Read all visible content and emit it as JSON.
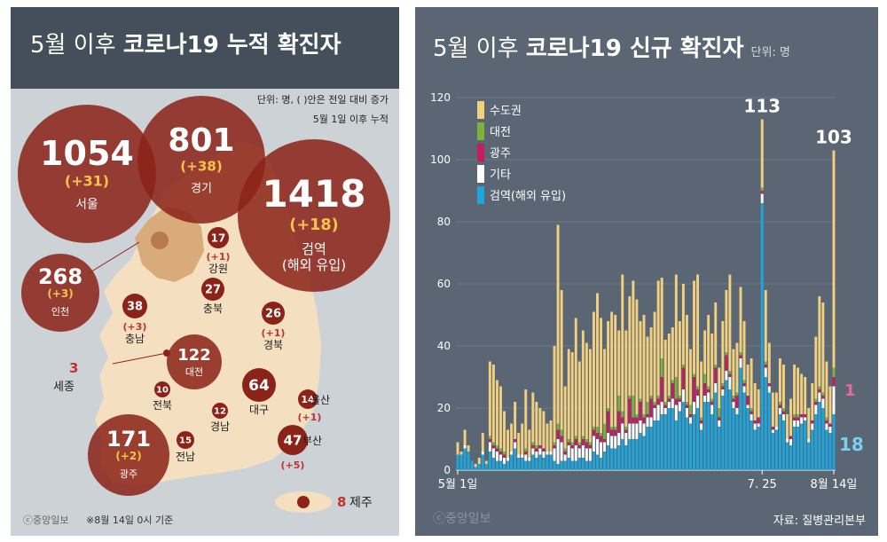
{
  "left": {
    "title_prefix": "5월 이후 ",
    "title_bold": "코로나19 누적 확진자",
    "note_line1": "단위: 명, ( )안은 전일 대비 증가",
    "note_line2": "5월 1일 이후 누적",
    "footer_brand": "ⓒ중앙일보",
    "footer_note": "※8월 14일 0시 기준",
    "bubbles": [
      {
        "name": "서울",
        "value": "1054",
        "inc": "(+31)"
      },
      {
        "name": "경기",
        "value": "801",
        "inc": "(+38)"
      },
      {
        "name": "검역",
        "name2": "(해외 유입)",
        "value": "1418",
        "inc": "(+18)"
      },
      {
        "name": "인천",
        "value": "268",
        "inc": "(+3)"
      },
      {
        "name": "광주",
        "value": "171",
        "inc": "(+2)"
      },
      {
        "name": "대전",
        "value": "122"
      }
    ],
    "regions": [
      {
        "name": "강원",
        "value": "17",
        "inc": "(+1)"
      },
      {
        "name": "충북",
        "value": "27"
      },
      {
        "name": "경북",
        "value": "26",
        "inc": "(+1)"
      },
      {
        "name": "충남",
        "value": "38",
        "inc": "(+3)"
      },
      {
        "name": "대구",
        "value": "64"
      },
      {
        "name": "전북",
        "value": "10"
      },
      {
        "name": "경남",
        "value": "12"
      },
      {
        "name": "울산",
        "value": "14",
        "inc": "(+1)"
      },
      {
        "name": "부산",
        "value": "47",
        "inc": "(+5)"
      },
      {
        "name": "전남",
        "value": "15"
      },
      {
        "name": "세종",
        "value": "3"
      },
      {
        "name": "제주",
        "value": "8"
      }
    ]
  },
  "right": {
    "title_prefix": "5월 이후 ",
    "title_bold": "코로나19 신규 확진자",
    "unit": "단위: 명",
    "source": "자료: 질병관리본부",
    "brand": "ⓒ중앙일보"
  },
  "colors": {
    "capital": "#f2d07e",
    "daejeon": "#7fb03a",
    "gwangju": "#c41c5e",
    "other": "#ffffff",
    "quarantine": "#1ea6dc",
    "bubble": "#8b2318",
    "land": "#f4dfc1",
    "metro": "#d9aa7a"
  },
  "chart_data": {
    "type": "bar",
    "title": "5월 이후 코로나19 신규 확진자",
    "unit": "단위: 명",
    "ylim": [
      0,
      120
    ],
    "yticks": [
      0,
      20,
      40,
      60,
      80,
      100,
      120
    ],
    "x_tick_labels": [
      {
        "index": 0,
        "label": "5월 1일"
      },
      {
        "index": 85,
        "label": "7. 25"
      },
      {
        "index": 105,
        "label": "8월 14일"
      }
    ],
    "series": [
      {
        "name": "수도권",
        "color": "#f2d07e"
      },
      {
        "name": "대전",
        "color": "#7fb03a"
      },
      {
        "name": "광주",
        "color": "#c41c5e"
      },
      {
        "name": "기타",
        "color": "#ffffff"
      },
      {
        "name": "검역(해외 유입)",
        "color": "#1ea6dc"
      }
    ],
    "totals": [
      9,
      6,
      13,
      8,
      3,
      2,
      4,
      12,
      3,
      35,
      34,
      29,
      27,
      19,
      13,
      15,
      22,
      12,
      15,
      26,
      13,
      25,
      22,
      20,
      19,
      15,
      16,
      40,
      79,
      58,
      27,
      39,
      38,
      49,
      35,
      45,
      41,
      39,
      51,
      57,
      49,
      39,
      48,
      51,
      50,
      45,
      63,
      45,
      56,
      61,
      55,
      48,
      50,
      43,
      46,
      51,
      61,
      62,
      42,
      44,
      46,
      63,
      48,
      60,
      50,
      39,
      61,
      63,
      35,
      45,
      50,
      44,
      54,
      33,
      48,
      58,
      63,
      39,
      41,
      59,
      48,
      34,
      36,
      28,
      26,
      113,
      58,
      41,
      25,
      25,
      36,
      34,
      18,
      23,
      34,
      33,
      31,
      30,
      20,
      28,
      43,
      56,
      54,
      35,
      27,
      103
    ],
    "quarantine": [
      5,
      5,
      7,
      6,
      3,
      1,
      2,
      5,
      2,
      6,
      4,
      3,
      3,
      2,
      3,
      5,
      7,
      4,
      4,
      3,
      3,
      5,
      4,
      5,
      4,
      5,
      5,
      3,
      2,
      3,
      3,
      4,
      3,
      3,
      4,
      4,
      3,
      3,
      6,
      5,
      4,
      6,
      8,
      7,
      7,
      8,
      10,
      8,
      10,
      10,
      10,
      12,
      11,
      14,
      14,
      16,
      16,
      18,
      18,
      20,
      20,
      16,
      19,
      22,
      17,
      15,
      18,
      20,
      13,
      22,
      22,
      18,
      25,
      14,
      24,
      29,
      26,
      20,
      18,
      33,
      25,
      20,
      16,
      13,
      14,
      86,
      30,
      25,
      12,
      13,
      18,
      16,
      9,
      8,
      14,
      14,
      15,
      16,
      9,
      13,
      18,
      22,
      20,
      13,
      12,
      18
    ],
    "annotations": [
      {
        "index": 85,
        "label": "113"
      },
      {
        "index": 105,
        "label": "103"
      },
      {
        "index": 105,
        "label": "18",
        "series": "검역(해외 유입)"
      },
      {
        "index": 105,
        "label": "1",
        "series": "광주"
      }
    ]
  }
}
